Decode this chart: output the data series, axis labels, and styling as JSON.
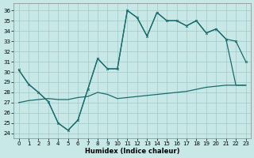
{
  "xlabel": "Humidex (Indice chaleur)",
  "bg_color": "#c8e8e8",
  "line_color": "#1a6b6b",
  "grid_color": "#a0c8c8",
  "xlim": [
    -0.5,
    23.5
  ],
  "ylim": [
    23.5,
    36.7
  ],
  "yticks": [
    24,
    25,
    26,
    27,
    28,
    29,
    30,
    31,
    32,
    33,
    34,
    35,
    36
  ],
  "xticks": [
    0,
    1,
    2,
    3,
    4,
    5,
    6,
    7,
    8,
    9,
    10,
    11,
    12,
    13,
    14,
    15,
    16,
    17,
    18,
    19,
    20,
    21,
    22,
    23
  ],
  "curve1_x": [
    0,
    1,
    2,
    3,
    4,
    5,
    6,
    7,
    8,
    9,
    10,
    11,
    12,
    13,
    14,
    15,
    16,
    17,
    18,
    19,
    20,
    21,
    22,
    23
  ],
  "curve1_y": [
    30.2,
    28.8,
    28.0,
    27.1,
    25.0,
    24.3,
    25.3,
    28.3,
    31.3,
    30.3,
    30.3,
    36.0,
    35.3,
    33.5,
    35.8,
    35.0,
    35.0,
    34.5,
    35.0,
    33.8,
    34.2,
    33.2,
    33.0,
    31.0
  ],
  "curve2_x": [
    0,
    1,
    2,
    3,
    4,
    5,
    6,
    7,
    8,
    9,
    10,
    11,
    12,
    13,
    14,
    15,
    16,
    17,
    18,
    19,
    20,
    21,
    22,
    23
  ],
  "curve2_y": [
    30.2,
    28.8,
    28.0,
    27.1,
    25.0,
    24.3,
    25.3,
    28.3,
    31.3,
    30.3,
    30.3,
    36.0,
    35.3,
    33.5,
    35.8,
    35.0,
    35.0,
    34.5,
    35.0,
    33.8,
    34.2,
    33.2,
    28.7,
    28.7
  ],
  "curve3_x": [
    0,
    1,
    2,
    3,
    4,
    5,
    6,
    7,
    8,
    9,
    10,
    11,
    12,
    13,
    14,
    15,
    16,
    17,
    18,
    19,
    20,
    21,
    22,
    23
  ],
  "curve3_y": [
    27.0,
    27.2,
    27.3,
    27.4,
    27.3,
    27.3,
    27.5,
    27.6,
    28.0,
    27.8,
    27.4,
    27.5,
    27.6,
    27.7,
    27.8,
    27.9,
    28.0,
    28.1,
    28.3,
    28.5,
    28.6,
    28.7,
    28.7,
    28.7
  ],
  "linewidth": 0.9,
  "markersize": 2.0,
  "tick_fontsize": 5.0,
  "xlabel_fontsize": 6.0
}
